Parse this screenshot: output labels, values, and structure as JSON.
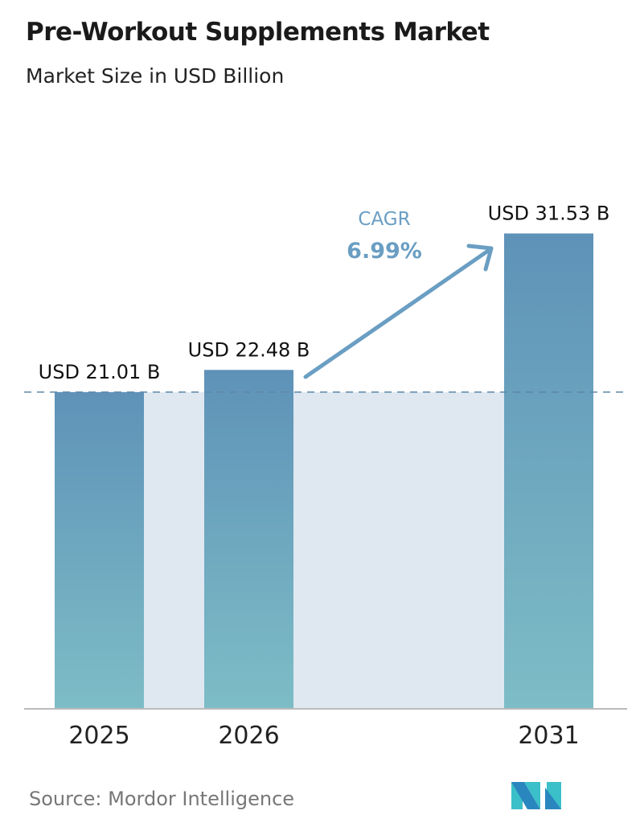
{
  "title": "Pre-Workout Supplements Market",
  "subtitle": "Market Size in USD Billion",
  "source": "Source:  Mordor Intelligence",
  "logo_text": "MI",
  "colors": {
    "bar_top": "#5f92b8",
    "bar_bottom": "#7dbdc6",
    "band": "#dfe8f1",
    "cagr": "#6a9ec3",
    "dash": "#5f86a6"
  },
  "chart_data": {
    "type": "bar",
    "categories": [
      "2025",
      "2026",
      "2031"
    ],
    "values": [
      21.01,
      22.48,
      31.53
    ],
    "data_labels": [
      "USD 21.01 B",
      "USD 22.48 B",
      "USD 31.53 B"
    ],
    "ylim": [
      0,
      33
    ],
    "grid": false,
    "reference_line": 21.01,
    "annotation": {
      "label": "CAGR",
      "value": "6.99%"
    }
  }
}
